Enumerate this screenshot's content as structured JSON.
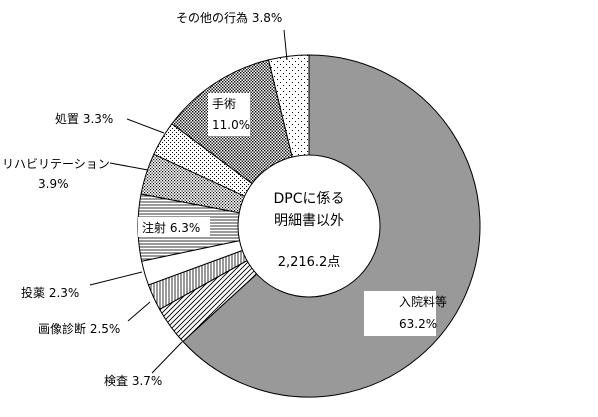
{
  "chart_data": {
    "type": "pie",
    "donut": true,
    "center_label_lines": [
      "DPCに係る",
      "明細書以外"
    ],
    "center_total": "2,216.2点",
    "unit": "%",
    "slices": [
      {
        "category": "入院料等",
        "value": 63.2,
        "value_label": "63.2%",
        "fill": "gray"
      },
      {
        "category": "検査",
        "value": 3.7,
        "value_label": "3.7%",
        "fill": "diagonal-lines"
      },
      {
        "category": "画像診断",
        "value": 2.5,
        "value_label": "2.5%",
        "fill": "vertical-lines"
      },
      {
        "category": "投薬",
        "value": 2.3,
        "value_label": "2.3%",
        "fill": "white"
      },
      {
        "category": "注射",
        "value": 6.3,
        "value_label": "6.3%",
        "fill": "horizontal-lines"
      },
      {
        "category": "リハビリテーション",
        "value": 3.9,
        "value_label": "3.9%",
        "fill": "fine-crosshatch"
      },
      {
        "category": "処置",
        "value": 3.3,
        "value_label": "3.3%",
        "fill": "light-dots"
      },
      {
        "category": "手術",
        "value": 11.0,
        "value_label": "11.0%",
        "fill": "dense-dots"
      },
      {
        "category": "その他の行為",
        "value": 3.8,
        "value_label": "3.8%",
        "fill": "sparse-dots"
      }
    ]
  }
}
